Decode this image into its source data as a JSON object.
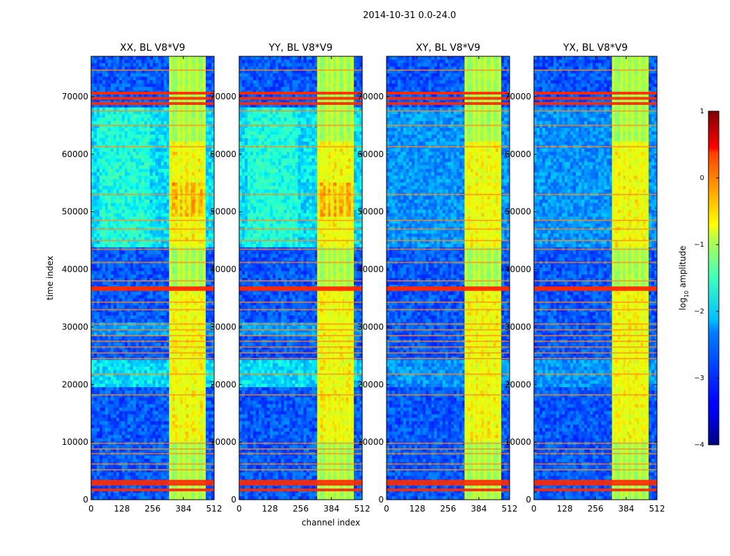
{
  "chart_data": {
    "type": "heatmap",
    "suptitle": "2014-10-31 0.0-24.0",
    "panels": [
      {
        "title": "XX, BL V8*V9",
        "polarization": "XX"
      },
      {
        "title": "YY, BL V8*V9",
        "polarization": "YY"
      },
      {
        "title": "XY, BL V8*V9",
        "polarization": "XY"
      },
      {
        "title": "YX, BL V8*V9",
        "polarization": "YX"
      }
    ],
    "xlabel": "channel index",
    "ylabel": "time index",
    "xlim": [
      0,
      512
    ],
    "ylim": [
      0,
      77000
    ],
    "xticks": [
      0,
      128,
      256,
      384,
      512
    ],
    "yticks": [
      0,
      10000,
      20000,
      30000,
      40000,
      50000,
      60000,
      70000
    ],
    "colorbar": {
      "label": "log10 amplitude",
      "label_main": "log",
      "label_sub": "10",
      "label_rest": " amplitude",
      "min": -4,
      "max": 1,
      "ticks": [
        "1",
        "0",
        "−1",
        "−2",
        "−3",
        "−4"
      ],
      "colormap": "jet"
    },
    "features": {
      "rfi_channel_band": [
        325,
        480
      ],
      "bright_channel_columns": [
        330,
        365,
        385,
        410,
        440,
        470
      ],
      "broadband_rfi_rows": [
        1700,
        2700,
        3200,
        5200,
        6200,
        8000,
        8800,
        9800,
        18200,
        21800,
        24500,
        25500,
        26500,
        27500,
        28500,
        29500,
        30500,
        33000,
        34300,
        36500,
        36800,
        38000,
        41200,
        43500,
        45000,
        47000,
        48500,
        53000,
        61300,
        65000,
        67500,
        68800,
        69700,
        70600,
        74600
      ],
      "elevated_regions": [
        {
          "t0": 19500,
          "t1": 24500,
          "level": -2.3
        },
        {
          "t0": 28500,
          "t1": 31000,
          "level": -2.6
        },
        {
          "t0": 44000,
          "t1": 68000,
          "level": -2.3
        }
      ]
    }
  }
}
